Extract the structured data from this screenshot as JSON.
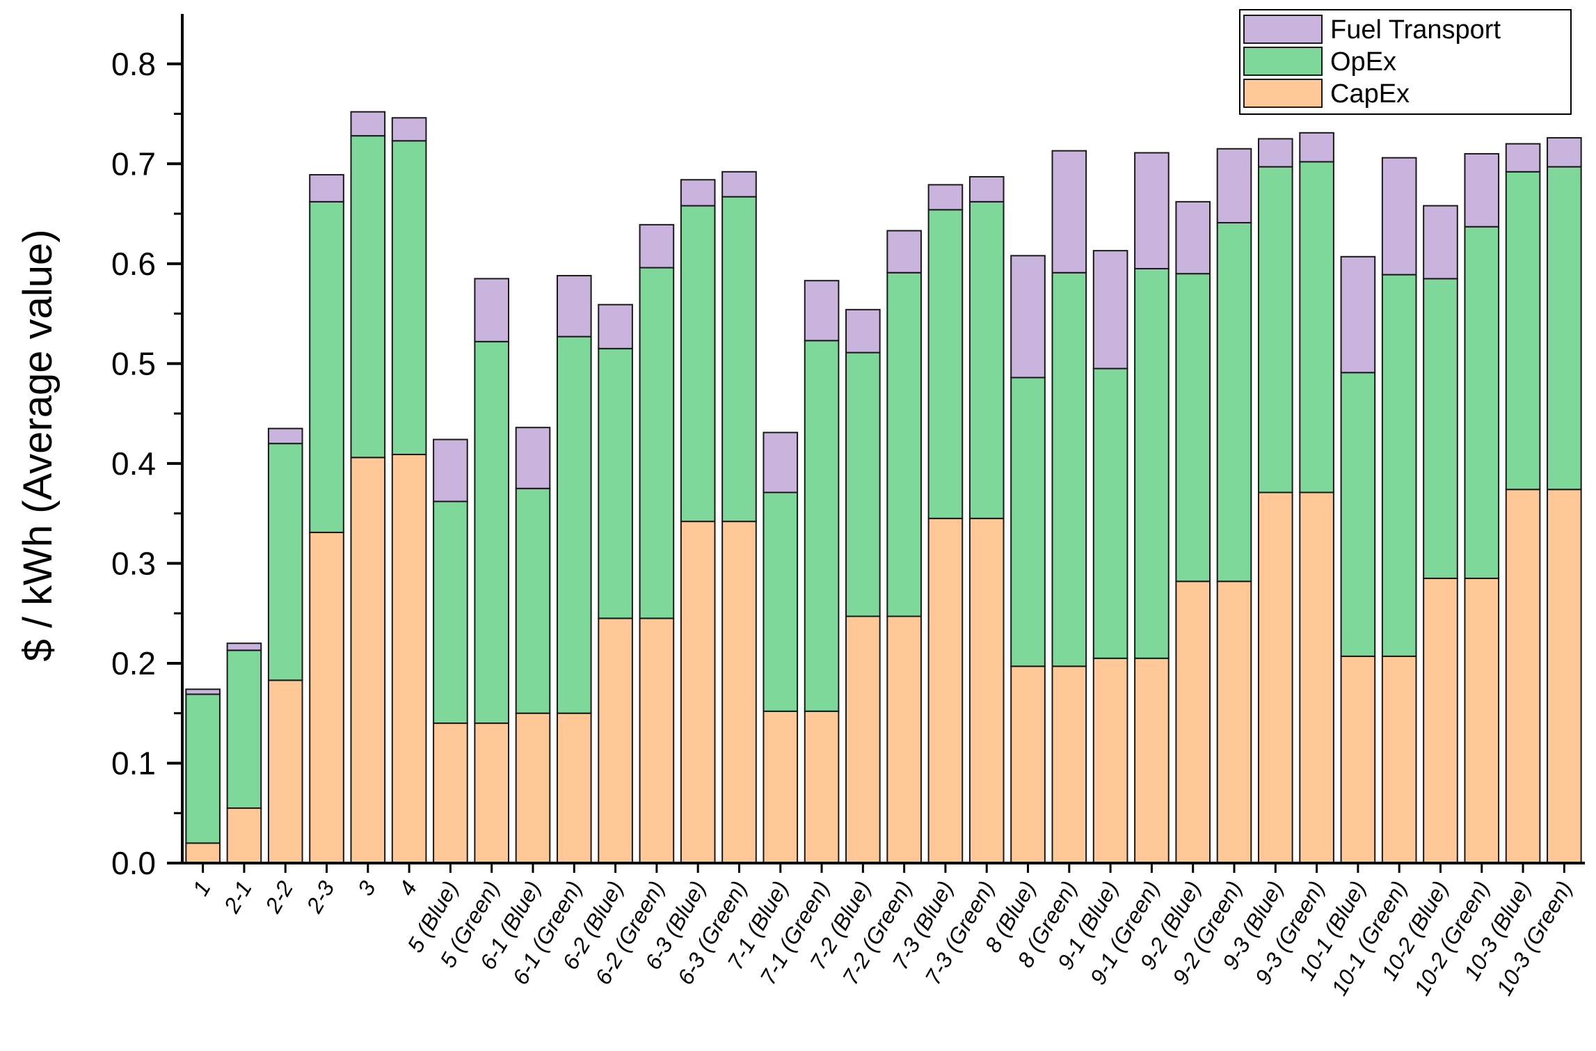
{
  "chart_data": {
    "type": "bar",
    "stacked": true,
    "title": "",
    "xlabel": "",
    "ylabel": "$ / kWh (Average value)",
    "ylim": [
      0,
      0.85
    ],
    "yticks": [
      "0.0",
      "0.1",
      "0.2",
      "0.3",
      "0.4",
      "0.5",
      "0.6",
      "0.7",
      "0.8"
    ],
    "grid": false,
    "legend_position": "top-right",
    "categories": [
      "1",
      "2-1",
      "2-2",
      "2-3",
      "3",
      "4",
      "5 (Blue)",
      "5 (Green)",
      "6-1 (Blue)",
      "6-1 (Green)",
      "6-2 (Blue)",
      "6-2 (Green)",
      "6-3 (Blue)",
      "6-3 (Green)",
      "7-1 (Blue)",
      "7-1 (Green)",
      "7-2 (Blue)",
      "7-2 (Green)",
      "7-3 (Blue)",
      "7-3 (Green)",
      "8 (Blue)",
      "8 (Green)",
      "9-1 (Blue)",
      "9-1 (Green)",
      "9-2 (Blue)",
      "9-2 (Green)",
      "9-3 (Blue)",
      "9-3 (Green)",
      "10-1 (Blue)",
      "10-1 (Green)",
      "10-2 (Blue)",
      "10-2 (Green)",
      "10-3 (Blue)",
      "10-3 (Green)"
    ],
    "series": [
      {
        "name": "CapEx",
        "color": "#ffc896",
        "values": [
          0.02,
          0.055,
          0.183,
          0.331,
          0.406,
          0.409,
          0.14,
          0.14,
          0.15,
          0.15,
          0.245,
          0.245,
          0.342,
          0.342,
          0.152,
          0.152,
          0.247,
          0.247,
          0.345,
          0.345,
          0.197,
          0.197,
          0.205,
          0.205,
          0.282,
          0.282,
          0.371,
          0.371,
          0.207,
          0.207,
          0.285,
          0.285,
          0.374,
          0.374
        ]
      },
      {
        "name": "OpEx",
        "color": "#7dd89a",
        "values": [
          0.149,
          0.158,
          0.237,
          0.331,
          0.322,
          0.314,
          0.222,
          0.382,
          0.225,
          0.377,
          0.27,
          0.351,
          0.316,
          0.325,
          0.219,
          0.371,
          0.264,
          0.344,
          0.309,
          0.317,
          0.289,
          0.394,
          0.29,
          0.39,
          0.308,
          0.359,
          0.326,
          0.331,
          0.284,
          0.382,
          0.3,
          0.352,
          0.318,
          0.323
        ]
      },
      {
        "name": "Fuel Transport",
        "color": "#c8b4dc",
        "values": [
          0.005,
          0.007,
          0.015,
          0.027,
          0.024,
          0.023,
          0.062,
          0.063,
          0.061,
          0.061,
          0.044,
          0.043,
          0.026,
          0.025,
          0.06,
          0.06,
          0.043,
          0.042,
          0.025,
          0.025,
          0.122,
          0.122,
          0.118,
          0.116,
          0.072,
          0.074,
          0.028,
          0.029,
          0.116,
          0.117,
          0.073,
          0.073,
          0.028,
          0.029
        ]
      }
    ]
  }
}
